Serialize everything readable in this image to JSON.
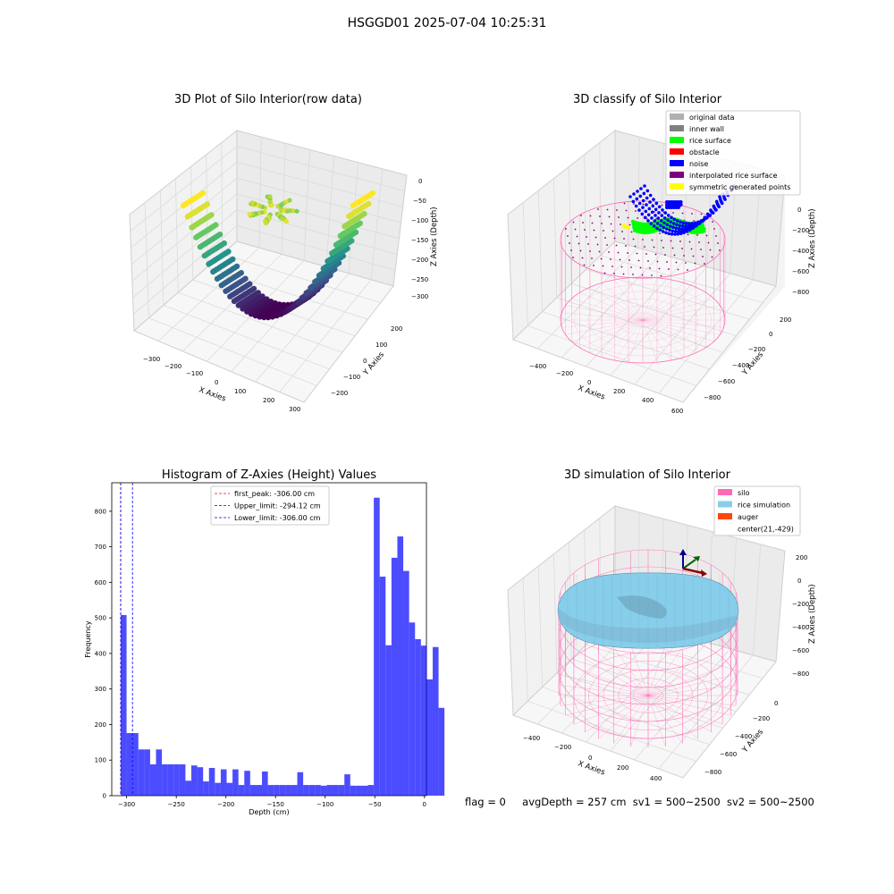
{
  "suptitle": "HSGGD01 2025-07-04 10:25:31",
  "panels": {
    "tl": {
      "title": "3D Plot of Silo Interior(row data)"
    },
    "tr": {
      "title": "3D classify of Silo Interior"
    },
    "bl": {
      "title": "Histogram of Z-Axies (Height) Values"
    },
    "br": {
      "title": "3D simulation of Silo Interior"
    }
  },
  "footer": {
    "flag": "flag = 0",
    "avg": "avgDepth = 257 cm",
    "sv1": "sv1 = 500~2500",
    "sv2": "sv2 = 500~2500"
  },
  "colors": {
    "viridis": [
      "#440154",
      "#3b528b",
      "#21918c",
      "#5ec962",
      "#fde725"
    ],
    "histogram": "#0000ff",
    "silo": "#ff69b4",
    "rice": "#87ceeb",
    "auger": "#ff4500"
  },
  "chart_data": [
    {
      "type": "scatter",
      "subtype": "3d-surface",
      "title": "3D Plot of Silo Interior(row data)",
      "xlabel": "X Axies",
      "ylabel": "Y Axies",
      "zlabel": "Z Axies (Depth)",
      "xticks": [
        "−300",
        "−200",
        "−100",
        "0",
        "100",
        "200",
        "300"
      ],
      "yticks": [
        "−200",
        "−100",
        "0",
        "100",
        "200"
      ],
      "zticks": [
        "0",
        "−50",
        "−100",
        "−150",
        "−200",
        "−250",
        "−300"
      ],
      "colormap": "viridis"
    },
    {
      "type": "scatter",
      "subtype": "3d-classified",
      "title": "3D classify of Silo Interior",
      "xlabel": "X Axies",
      "ylabel": "Y Axies",
      "zlabel": "Z Axies (Depth)",
      "xticks": [
        "−400",
        "−200",
        "0",
        "200",
        "400",
        "600"
      ],
      "yticks": [
        "−800",
        "−600",
        "−400",
        "−200",
        "0",
        "200"
      ],
      "zticks": [
        "0",
        "−200",
        "−400",
        "−600",
        "−800"
      ],
      "legend": [
        {
          "label": "original data",
          "color": "#b0b0b0"
        },
        {
          "label": "inner wall",
          "color": "#808080"
        },
        {
          "label": "rice surface",
          "color": "#00ff00"
        },
        {
          "label": "obstacle",
          "color": "#ff0000"
        },
        {
          "label": "noise",
          "color": "#0000ff"
        },
        {
          "label": "interpolated rice surface",
          "color": "#800080"
        },
        {
          "label": "symmetric generated points",
          "color": "#ffff00"
        }
      ]
    },
    {
      "type": "bar",
      "subtype": "histogram",
      "title": "Histogram of Z-Axies (Height) Values",
      "xlabel": "Depth (cm)",
      "ylabel": "Frequency",
      "xlim": [
        -315,
        2
      ],
      "ylim": [
        0,
        880
      ],
      "xticks": [
        -300,
        -250,
        -200,
        -150,
        -100,
        -50,
        0
      ],
      "xtick_labels": [
        "−300",
        "−250",
        "−200",
        "−150",
        "−100",
        "−50",
        "0"
      ],
      "yticks": [
        0,
        100,
        200,
        300,
        400,
        500,
        600,
        700,
        800
      ],
      "bins": {
        "start": -306,
        "width": 5.93,
        "values": [
          508,
          176,
          176,
          130,
          130,
          88,
          130,
          88,
          88,
          88,
          88,
          42,
          85,
          80,
          40,
          78,
          36,
          74,
          36,
          74,
          30,
          70,
          30,
          30,
          68,
          30,
          30,
          30,
          30,
          30,
          66,
          30,
          30,
          30,
          28,
          30,
          30,
          30,
          60,
          28,
          28,
          28,
          30,
          838,
          616,
          423,
          669,
          729,
          632,
          487,
          440,
          422,
          327,
          418,
          247
        ]
      },
      "vlines": [
        {
          "label": "first_peak: -306.00 cm",
          "x": -306.0,
          "color": "#ff0000"
        },
        {
          "label": "Upper_limit: -294.12 cm",
          "x": -294.12,
          "color": "#0000ff"
        },
        {
          "label": "Lower_limit: -306.00 cm",
          "x": -306.0,
          "color": "#0000ff"
        }
      ]
    },
    {
      "type": "scatter",
      "subtype": "3d-simulation",
      "title": "3D simulation of Silo Interior",
      "xlabel": "X Axies",
      "ylabel": "Y Axies",
      "zlabel": "Z Axies (Depth)",
      "xticks": [
        "−400",
        "−200",
        "0",
        "200",
        "400"
      ],
      "yticks": [
        "−800",
        "−600",
        "−400",
        "−200",
        "0"
      ],
      "zticks": [
        "200",
        "0",
        "−200",
        "−400",
        "−600",
        "−800"
      ],
      "legend": [
        {
          "label": "silo",
          "color": "#ff69b4"
        },
        {
          "label": "rice simulation",
          "color": "#87ceeb"
        },
        {
          "label": "auger",
          "color": "#ff4500"
        },
        {
          "label": "center(21,-429)",
          "color": ""
        }
      ]
    }
  ]
}
